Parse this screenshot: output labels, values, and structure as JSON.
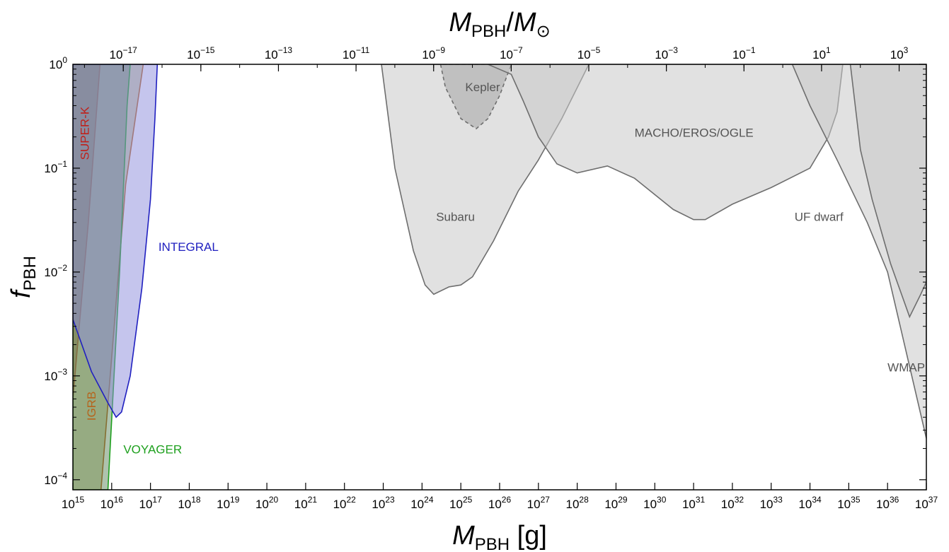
{
  "chart_data": {
    "type": "area",
    "xlabel": {
      "main": "M",
      "sub": "PBH",
      "unit": " [g]"
    },
    "x2label": {
      "main": "M",
      "sub": "PBH",
      "sep": "/",
      "main2": "M",
      "sub2": "⊙"
    },
    "ylabel": {
      "main": "f",
      "sub": "PBH"
    },
    "xscale": "log",
    "yscale": "log",
    "xlim": [
      1000000000000000.0,
      1e+37
    ],
    "ylim": [
      8e-05,
      1
    ],
    "grid": false,
    "x_ticks": [
      {
        "v": 1000000000000000.0,
        "exp": "15"
      },
      {
        "v": 1e+16,
        "exp": "16"
      },
      {
        "v": 1e+17,
        "exp": "17"
      },
      {
        "v": 1e+18,
        "exp": "18"
      },
      {
        "v": 1e+19,
        "exp": "19"
      },
      {
        "v": 1e+20,
        "exp": "20"
      },
      {
        "v": 1e+21,
        "exp": "21"
      },
      {
        "v": 1e+22,
        "exp": "22"
      },
      {
        "v": 1e+23,
        "exp": "23"
      },
      {
        "v": 1e+24,
        "exp": "24"
      },
      {
        "v": 1e+25,
        "exp": "25"
      },
      {
        "v": 1e+26,
        "exp": "26"
      },
      {
        "v": 1e+27,
        "exp": "27"
      },
      {
        "v": 1e+28,
        "exp": "28"
      },
      {
        "v": 1e+29,
        "exp": "29"
      },
      {
        "v": 1e+30,
        "exp": "30"
      },
      {
        "v": 1e+31,
        "exp": "31"
      },
      {
        "v": 1e+32,
        "exp": "32"
      },
      {
        "v": 1e+33,
        "exp": "33"
      },
      {
        "v": 1e+34,
        "exp": "34"
      },
      {
        "v": 1e+35,
        "exp": "35"
      },
      {
        "v": 1e+36,
        "exp": "36"
      },
      {
        "v": 1e+37,
        "exp": "37"
      }
    ],
    "x2_ticks": [
      {
        "v": 1e-17,
        "exp": "−17"
      },
      {
        "v": 1e-15,
        "exp": "−15"
      },
      {
        "v": 1e-13,
        "exp": "−13"
      },
      {
        "v": 1e-11,
        "exp": "−11"
      },
      {
        "v": 1e-09,
        "exp": "−9"
      },
      {
        "v": 1e-07,
        "exp": "−7"
      },
      {
        "v": 1e-05,
        "exp": "−5"
      },
      {
        "v": 0.001,
        "exp": "−3"
      },
      {
        "v": 0.1,
        "exp": "−1"
      },
      {
        "v": 10,
        "plain": "10",
        "exp": "1"
      },
      {
        "v": 1000,
        "exp": "3"
      }
    ],
    "solar_mass_g": 1.989e+33,
    "y_ticks": [
      {
        "v": 1,
        "plain": "1",
        "exp": "0"
      },
      {
        "v": 0.1,
        "exp": "−1"
      },
      {
        "v": 0.01,
        "exp": "−2"
      },
      {
        "v": 0.001,
        "exp": "−3"
      },
      {
        "v": 0.0001,
        "exp": "−4"
      }
    ],
    "regions": [
      {
        "name": "SUPER-K",
        "fill": "#7a2a24",
        "opacity": 0.5,
        "stroke": "#c0201a",
        "dashed": false,
        "points": [
          [
            1000000000000000.0,
            0.0006
          ],
          [
            2500000000000000.0,
            0.03
          ],
          [
            5000000000000000.0,
            1
          ],
          [
            1000000000000000.0,
            1
          ]
        ]
      },
      {
        "name": "IGRB",
        "fill": "#a8a860",
        "opacity": 0.5,
        "stroke": "#b5651d",
        "dashed": false,
        "points": [
          [
            5300000000000000.0,
            8e-05
          ],
          [
            2.3e+16,
            0.07
          ],
          [
            6.5e+16,
            1
          ],
          [
            1000000000000000.0,
            1
          ],
          [
            1000000000000000.0,
            8e-05
          ]
        ]
      },
      {
        "name": "VOYAGER",
        "fill": "#4c7a4c",
        "opacity": 0.45,
        "stroke": "#1ea01e",
        "dashed": false,
        "points": [
          [
            8000000000000000.0,
            8e-05
          ],
          [
            1.6e+16,
            0.01
          ],
          [
            2.5e+16,
            0.4
          ],
          [
            3e+16,
            1
          ],
          [
            1000000000000000.0,
            1
          ],
          [
            1000000000000000.0,
            8e-05
          ]
        ]
      },
      {
        "name": "INTEGRAL",
        "fill": "#8c8cdc",
        "opacity": 0.5,
        "stroke": "#2020c0",
        "dashed": false,
        "points": [
          [
            1000000000000000.0,
            0.0035
          ],
          [
            3000000000000000.0,
            0.0011
          ],
          [
            8000000000000000.0,
            0.00055
          ],
          [
            1.3e+16,
            0.0004
          ],
          [
            1.8e+16,
            0.00045
          ],
          [
            3e+16,
            0.001
          ],
          [
            6e+16,
            0.007
          ],
          [
            1e+17,
            0.05
          ],
          [
            1.3e+17,
            0.3
          ],
          [
            1.5e+17,
            1
          ],
          [
            1000000000000000.0,
            1
          ]
        ]
      },
      {
        "name": "Subaru",
        "fill": "#c8c8c8",
        "opacity": 0.55,
        "stroke": "#6e6e6e",
        "dashed": false,
        "points": [
          [
            9e+22,
            1
          ],
          [
            2e+23,
            0.1
          ],
          [
            6e+23,
            0.016
          ],
          [
            1.2e+24,
            0.0075
          ],
          [
            2e+24,
            0.0061
          ],
          [
            5e+24,
            0.0072
          ],
          [
            1e+25,
            0.0075
          ],
          [
            2e+25,
            0.009
          ],
          [
            7e+25,
            0.02
          ],
          [
            3e+26,
            0.06
          ],
          [
            1e+27,
            0.12
          ],
          [
            4e+27,
            0.3
          ],
          [
            2e+28,
            1
          ]
        ]
      },
      {
        "name": "Kepler",
        "fill": "#a0a0a0",
        "opacity": 0.5,
        "stroke": "#6e6e6e",
        "dashed": true,
        "points": [
          [
            3e+24,
            1
          ],
          [
            4e+24,
            0.6
          ],
          [
            1e+25,
            0.3
          ],
          [
            2.5e+25,
            0.24
          ],
          [
            5e+25,
            0.3
          ],
          [
            1e+26,
            0.5
          ],
          [
            2e+26,
            1
          ]
        ]
      },
      {
        "name": "MACHO/EROS/OGLE",
        "fill": "#c8c8c8",
        "opacity": 0.55,
        "stroke": "#6e6e6e",
        "dashed": false,
        "points": [
          [
            5e+25,
            1
          ],
          [
            2e+26,
            0.8
          ],
          [
            4e+26,
            0.45
          ],
          [
            1e+27,
            0.2
          ],
          [
            3e+27,
            0.11
          ],
          [
            1e+28,
            0.09
          ],
          [
            6e+28,
            0.105
          ],
          [
            3e+29,
            0.08
          ],
          [
            3e+30,
            0.04
          ],
          [
            1e+31,
            0.032
          ],
          [
            2e+31,
            0.032
          ],
          [
            1e+32,
            0.045
          ],
          [
            1e+33,
            0.065
          ],
          [
            1e+34,
            0.1
          ],
          [
            3e+34,
            0.2
          ],
          [
            5e+34,
            0.35
          ],
          [
            7e+34,
            1
          ]
        ]
      },
      {
        "name": "UF dwarf",
        "fill": "#c8c8c8",
        "opacity": 0.55,
        "stroke": "#6e6e6e",
        "dashed": false,
        "points": [
          [
            3.5e+33,
            1
          ],
          [
            1e+34,
            0.4
          ],
          [
            5e+34,
            0.12
          ],
          [
            3e+35,
            0.03
          ],
          [
            1e+36,
            0.01
          ],
          [
            1e+37,
            0.00025
          ],
          [
            1e+37,
            1
          ]
        ]
      },
      {
        "name": "WMAP",
        "fill": "#c8c8c8",
        "opacity": 0.55,
        "stroke": "#6e6e6e",
        "dashed": false,
        "points": [
          [
            1.1e+35,
            1
          ],
          [
            2e+35,
            0.15
          ],
          [
            4e+35,
            0.05
          ],
          [
            1.2e+36,
            0.012
          ],
          [
            3.7e+36,
            0.0037
          ],
          [
            7e+36,
            0.006
          ],
          [
            1e+37,
            0.008
          ],
          [
            1e+37,
            1
          ]
        ]
      }
    ],
    "labels": [
      {
        "text": "SUPER-K",
        "x": 2600000000000000.0,
        "y": 0.12,
        "color": "#c0201a",
        "rotate": -90
      },
      {
        "text": "IGRB",
        "x": 3800000000000000.0,
        "y": 0.00037,
        "color": "#b5651d",
        "rotate": -90
      },
      {
        "text": "VOYAGER",
        "x": 2e+16,
        "y": 0.00018,
        "color": "#1ea01e",
        "rotate": 0
      },
      {
        "text": "INTEGRAL",
        "x": 1.6e+17,
        "y": 0.016,
        "color": "#2020c0",
        "rotate": 0
      },
      {
        "text": "Kepler",
        "x": 1.3e+25,
        "y": 0.55,
        "color": "#555555",
        "rotate": 0
      },
      {
        "text": "Subaru",
        "x": 2.3e+24,
        "y": 0.031,
        "color": "#555555",
        "rotate": 0
      },
      {
        "text": "MACHO/EROS/OGLE",
        "x": 3e+29,
        "y": 0.2,
        "color": "#555555",
        "rotate": 0
      },
      {
        "text": "UF dwarf",
        "x": 4e+33,
        "y": 0.031,
        "color": "#555555",
        "rotate": 0
      },
      {
        "text": "WMAP",
        "x": 1e+36,
        "y": 0.0011,
        "color": "#555555",
        "rotate": 0
      }
    ]
  }
}
